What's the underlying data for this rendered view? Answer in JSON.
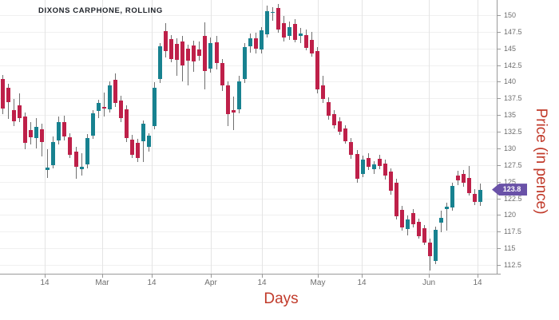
{
  "title": "DIXONS CARPHONE, ROLLING",
  "axes": {
    "x_label": "Days",
    "y_label": "Price (in pence)",
    "x_ticks": [
      {
        "label": "14",
        "x": 56
      },
      {
        "label": "Mar",
        "x": 128
      },
      {
        "label": "14",
        "x": 190
      },
      {
        "label": "Apr",
        "x": 264
      },
      {
        "label": "14",
        "x": 328
      },
      {
        "label": "May",
        "x": 398
      },
      {
        "label": "14",
        "x": 453
      },
      {
        "label": "Jun",
        "x": 537
      },
      {
        "label": "14",
        "x": 598
      }
    ],
    "y_ticks": [
      {
        "label": "150",
        "price": 150
      },
      {
        "label": "147.5",
        "price": 147.5
      },
      {
        "label": "145",
        "price": 145
      },
      {
        "label": "142.5",
        "price": 142.5
      },
      {
        "label": "140",
        "price": 140
      },
      {
        "label": "137.5",
        "price": 137.5
      },
      {
        "label": "135",
        "price": 135
      },
      {
        "label": "132.5",
        "price": 132.5
      },
      {
        "label": "130",
        "price": 130
      },
      {
        "label": "127.5",
        "price": 127.5
      },
      {
        "label": "125",
        "price": 125
      },
      {
        "label": "122.5",
        "price": 122.5
      },
      {
        "label": "120",
        "price": 120
      },
      {
        "label": "117.5",
        "price": 117.5
      },
      {
        "label": "115",
        "price": 115
      },
      {
        "label": "112.5",
        "price": 112.5
      }
    ]
  },
  "badge": {
    "value": "123.8",
    "color": "#6a52a8"
  },
  "colors": {
    "up": "#188290",
    "down": "#be2049",
    "wick": "#6f6f6f",
    "axis_label_red": "#c13a2a"
  },
  "chart_data": {
    "type": "candlestick",
    "title": "DIXONS CARPHONE, ROLLING",
    "xlabel": "Days",
    "ylabel": "Price (in pence)",
    "y_range": [
      112.5,
      150
    ],
    "x_tick_labels": [
      "14",
      "Mar",
      "14",
      "Apr",
      "14",
      "May",
      "14",
      "Jun",
      "14"
    ],
    "last_price": 123.8,
    "legend": "none",
    "grid": "on",
    "candles_ohlc": [
      [
        140.4,
        141.0,
        135.2,
        136.0
      ],
      [
        139.1,
        139.7,
        134.4,
        136.9
      ],
      [
        135.8,
        137.4,
        133.3,
        134.1
      ],
      [
        136.5,
        138.2,
        133.9,
        134.6
      ],
      [
        134.8,
        135.4,
        129.9,
        130.8
      ],
      [
        132.8,
        133.9,
        130.6,
        131.7
      ],
      [
        131.5,
        134.6,
        130.0,
        133.2
      ],
      [
        132.9,
        133.7,
        128.8,
        130.9
      ],
      [
        126.7,
        129.9,
        125.5,
        127.1
      ],
      [
        127.5,
        131.8,
        127.0,
        131.0
      ],
      [
        131.2,
        134.8,
        130.6,
        134.0
      ],
      [
        134.0,
        134.9,
        131.2,
        131.8
      ],
      [
        131.7,
        132.3,
        128.5,
        129.0
      ],
      [
        129.5,
        130.2,
        125.4,
        127.2
      ],
      [
        126.9,
        129.3,
        125.9,
        127.2
      ],
      [
        127.6,
        132.2,
        127.0,
        131.6
      ],
      [
        131.9,
        135.8,
        131.4,
        135.3
      ],
      [
        135.6,
        137.3,
        134.6,
        136.8
      ],
      [
        136.2,
        138.4,
        134.8,
        136.0
      ],
      [
        135.9,
        140.0,
        135.4,
        139.5
      ],
      [
        140.3,
        141.2,
        136.2,
        136.8
      ],
      [
        137.2,
        137.9,
        134.0,
        134.5
      ],
      [
        135.9,
        136.5,
        130.9,
        131.5
      ],
      [
        131.3,
        132.0,
        128.5,
        129.0
      ],
      [
        130.8,
        131.4,
        127.9,
        128.6
      ],
      [
        131.1,
        134.2,
        128.0,
        133.7
      ],
      [
        130.2,
        132.3,
        129.5,
        131.9
      ],
      [
        133.4,
        139.9,
        132.9,
        139.1
      ],
      [
        140.4,
        145.8,
        139.8,
        145.3
      ],
      [
        147.6,
        148.8,
        143.6,
        144.6
      ],
      [
        146.4,
        147.0,
        142.9,
        143.4
      ],
      [
        145.7,
        146.5,
        140.9,
        143.3
      ],
      [
        146.0,
        146.9,
        140.1,
        142.4
      ],
      [
        145.0,
        145.6,
        139.5,
        143.2
      ],
      [
        145.4,
        146.2,
        141.5,
        143.1
      ],
      [
        144.9,
        146.0,
        143.2,
        143.9
      ],
      [
        146.9,
        148.9,
        138.8,
        141.6
      ],
      [
        142.0,
        146.6,
        141.4,
        145.8
      ],
      [
        145.9,
        146.9,
        141.8,
        142.8
      ],
      [
        142.8,
        143.4,
        138.6,
        139.5
      ],
      [
        139.5,
        140.1,
        133.4,
        135.2
      ],
      [
        135.7,
        137.8,
        132.7,
        135.4
      ],
      [
        135.9,
        140.9,
        135.3,
        140.1
      ],
      [
        140.4,
        145.8,
        139.8,
        145.2
      ],
      [
        145.3,
        147.2,
        144.4,
        146.5
      ],
      [
        146.5,
        147.4,
        144.3,
        145.0
      ],
      [
        144.9,
        148.2,
        144.3,
        147.7
      ],
      [
        147.1,
        151.4,
        146.6,
        150.6
      ],
      [
        150.3,
        151.2,
        149.2,
        150.5
      ],
      [
        151.1,
        151.7,
        147.4,
        147.9
      ],
      [
        148.8,
        149.9,
        146.1,
        146.6
      ],
      [
        146.9,
        149.1,
        146.3,
        148.2
      ],
      [
        148.7,
        149.4,
        145.9,
        146.3
      ],
      [
        146.9,
        148.1,
        145.8,
        147.2
      ],
      [
        147.0,
        147.8,
        144.7,
        145.1
      ],
      [
        146.3,
        147.5,
        143.8,
        144.3
      ],
      [
        144.6,
        145.2,
        138.3,
        138.8
      ],
      [
        139.5,
        140.9,
        136.8,
        137.4
      ],
      [
        136.9,
        137.6,
        134.3,
        134.9
      ],
      [
        135.1,
        135.8,
        133.0,
        133.5
      ],
      [
        134.1,
        134.7,
        132.0,
        132.5
      ],
      [
        133.0,
        133.5,
        130.7,
        131.1
      ],
      [
        131.0,
        131.6,
        128.4,
        129.0
      ],
      [
        129.2,
        129.8,
        124.8,
        125.4
      ],
      [
        126.2,
        128.9,
        125.7,
        128.3
      ],
      [
        128.6,
        129.3,
        126.8,
        127.2
      ],
      [
        126.9,
        128.1,
        126.2,
        127.6
      ],
      [
        128.4,
        129.0,
        126.9,
        127.4
      ],
      [
        127.7,
        128.3,
        125.3,
        125.9
      ],
      [
        126.5,
        127.0,
        123.1,
        123.6
      ],
      [
        124.9,
        125.4,
        119.3,
        119.8
      ],
      [
        120.8,
        121.4,
        117.6,
        118.1
      ],
      [
        117.9,
        119.9,
        116.9,
        119.3
      ],
      [
        120.3,
        120.9,
        118.1,
        118.6
      ],
      [
        119.0,
        119.5,
        116.4,
        116.8
      ],
      [
        118.0,
        118.5,
        115.5,
        115.9
      ],
      [
        115.8,
        116.4,
        111.7,
        113.8
      ],
      [
        113.1,
        118.3,
        112.6,
        117.8
      ],
      [
        118.8,
        120.7,
        117.4,
        119.6
      ],
      [
        120.9,
        121.9,
        117.6,
        121.3
      ],
      [
        121.1,
        124.9,
        120.6,
        124.4
      ],
      [
        125.9,
        126.6,
        124.5,
        125.2
      ],
      [
        126.1,
        126.7,
        124.3,
        124.8
      ],
      [
        125.6,
        127.4,
        122.9,
        123.3
      ],
      [
        123.2,
        123.9,
        121.5,
        122.0
      ],
      [
        122.0,
        124.7,
        121.4,
        123.8
      ]
    ]
  }
}
